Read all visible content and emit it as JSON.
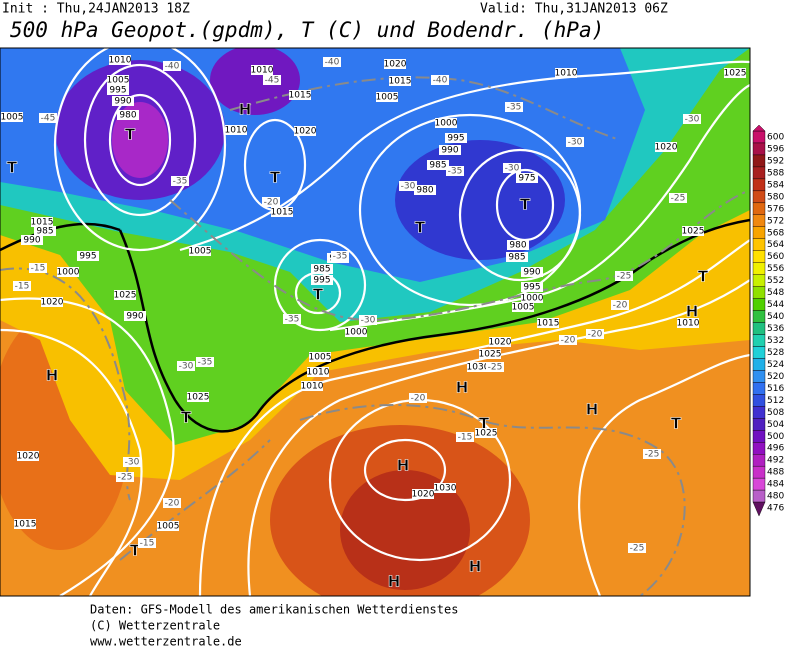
{
  "header": {
    "init": "Init : Thu,24JAN2013 18Z",
    "valid": "Valid: Thu,31JAN2013 06Z",
    "title": "500 hPa Geopot.(gpdm), T (C) und Bodendr. (hPa)"
  },
  "colorbar": {
    "levels": [
      600,
      596,
      592,
      588,
      584,
      580,
      576,
      572,
      568,
      564,
      560,
      556,
      552,
      548,
      544,
      540,
      536,
      532,
      528,
      524,
      520,
      516,
      512,
      508,
      504,
      500,
      496,
      492,
      488,
      484,
      480,
      476
    ],
    "colors": [
      "#c8106a",
      "#a81048",
      "#901818",
      "#a82020",
      "#c03018",
      "#d04c18",
      "#e06810",
      "#f08810",
      "#f8a400",
      "#ffc400",
      "#ffe000",
      "#f0f000",
      "#c8f000",
      "#90e000",
      "#50d000",
      "#30c040",
      "#20c080",
      "#20d0b0",
      "#20d0d8",
      "#20b0e8",
      "#3090f0",
      "#3070f0",
      "#3050e0",
      "#4030d0",
      "#5020c0",
      "#7010c0",
      "#9010c0",
      "#b020c0",
      "#c830c8",
      "#d848d8",
      "#b860c8",
      "#601060"
    ]
  },
  "centers": [
    "H",
    "T",
    "T",
    "T",
    "T",
    "T",
    "T",
    "H",
    "T",
    "H",
    "H",
    "H",
    "T",
    "H",
    "T",
    "H",
    "T",
    "H",
    "T"
  ],
  "isobars": [
    "1010",
    "1005",
    "995",
    "990",
    "980",
    "1010",
    "1015",
    "1020",
    "1020",
    "1015",
    "1005",
    "1010",
    "1025",
    "1000",
    "995",
    "990",
    "985",
    "980",
    "975",
    "980",
    "985",
    "990",
    "995",
    "1000",
    "1005",
    "1015",
    "1020",
    "1025",
    "1030",
    "1025",
    "1030",
    "1020",
    "1020",
    "1025",
    "1010",
    "1005",
    "1000",
    "995",
    "990",
    "985",
    "1015",
    "1020",
    "1025",
    "990",
    "985",
    "995",
    "995",
    "1000",
    "1005",
    "1010",
    "1010",
    "1025",
    "1020",
    "1015",
    "1005",
    "1015",
    "1005",
    "1010"
  ],
  "temps": [
    "-40",
    "-45",
    "-45",
    "-40",
    "-40",
    "-35",
    "-30",
    "-30",
    "-25",
    "-30",
    "-30",
    "-35",
    "-35",
    "-35",
    "-35",
    "-30",
    "-25",
    "-20",
    "-20",
    "-20",
    "-25",
    "-20",
    "-15",
    "-25",
    "-25",
    "-30",
    "-35",
    "-30",
    "-25",
    "-20",
    "-15",
    "-15",
    "-15",
    "-20"
  ],
  "footer": [
    "Daten: GFS-Modell des amerikanischen Wetterdienstes",
    "(C) Wetterzentrale",
    "www.wetterzentrale.de"
  ]
}
